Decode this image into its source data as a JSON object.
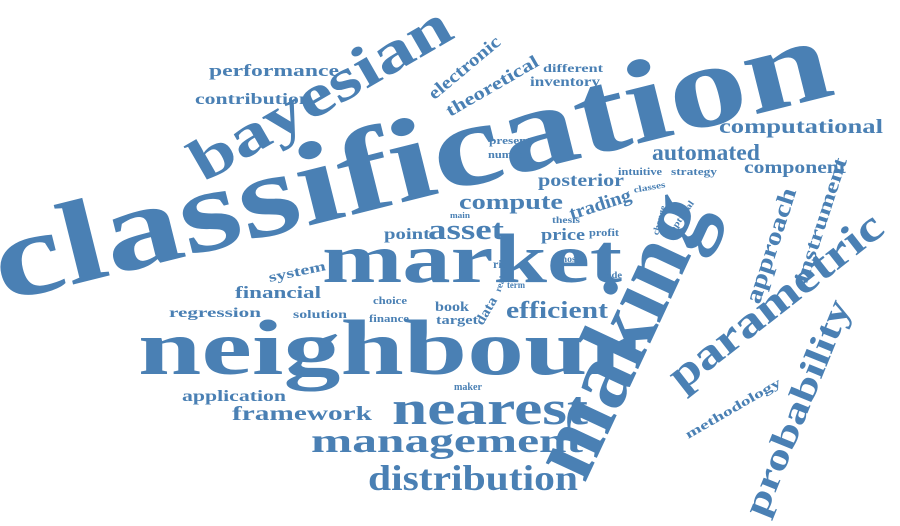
{
  "colors": {
    "text": "#4a80b4",
    "background": "#ffffff"
  },
  "words": [
    "classification",
    "making",
    "neighbour",
    "market",
    "bayesian",
    "parametric",
    "probability",
    "nearest",
    "management",
    "distribution",
    "asset",
    "approach",
    "instrument",
    "efficient",
    "automated",
    "compute",
    "computational",
    "component",
    "posterior",
    "trading",
    "electronic",
    "theoretical",
    "performance",
    "contribution",
    "different",
    "inventory",
    "financial",
    "framework",
    "application",
    "regression",
    "methodology",
    "system",
    "point",
    "price",
    "book",
    "target",
    "data",
    "solution",
    "finance",
    "choice",
    "risk",
    "real",
    "term",
    "most",
    "trade",
    "present",
    "number",
    "intuitive",
    "strategy",
    "classes",
    "main",
    "thesis",
    "profit",
    "change",
    "optimal",
    "maker"
  ]
}
